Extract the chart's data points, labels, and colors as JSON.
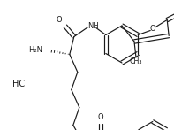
{
  "bg_color": "#ffffff",
  "line_color": "#1a1a1a",
  "line_width": 0.85,
  "font_size": 6.0,
  "fig_width": 1.97,
  "fig_height": 1.47,
  "dpi": 100,
  "xlim": [
    0,
    197
  ],
  "ylim": [
    0,
    147
  ]
}
